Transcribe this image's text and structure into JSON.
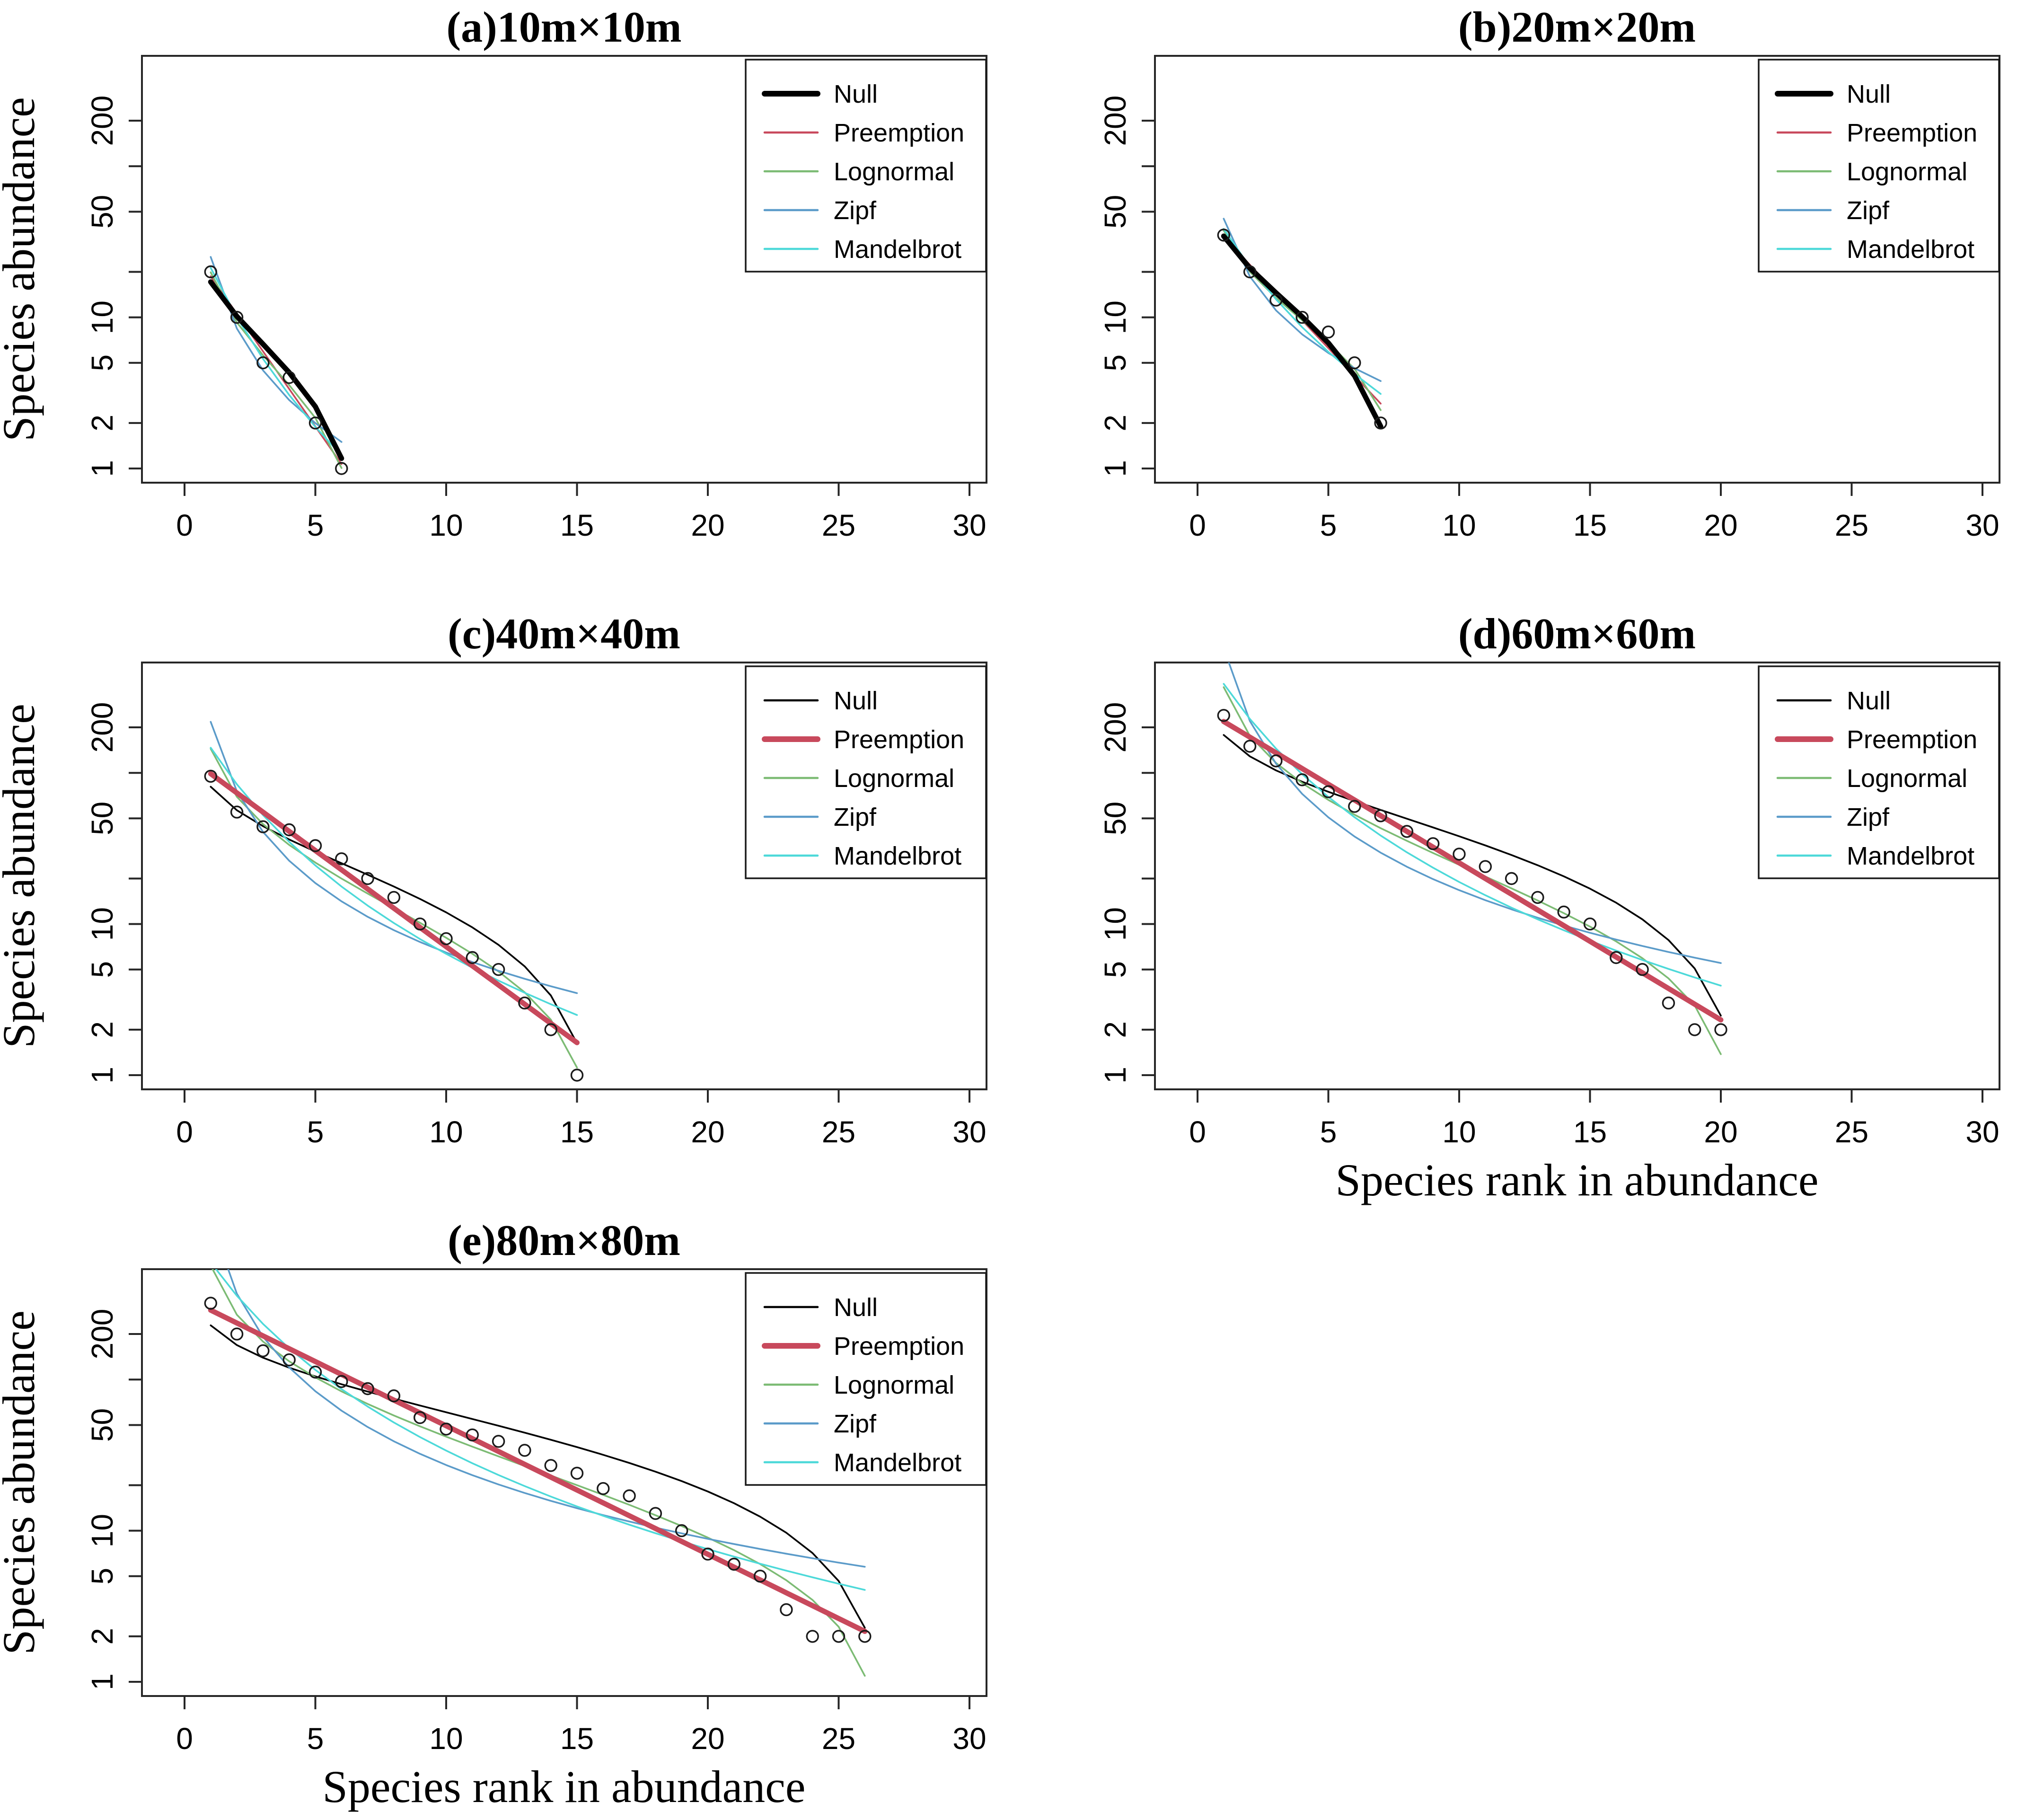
{
  "chart_data": {
    "type": "line",
    "description_title": "Rank abundance curves with fitted models",
    "xlabel": "Species rank in abundance",
    "ylabel": "Species abundance",
    "x_ticks": [
      0,
      5,
      10,
      15,
      20,
      25,
      30
    ],
    "y_ticks_labeled": [
      200,
      50,
      10,
      5,
      2,
      1
    ],
    "y_ticks_unlabeled": [
      100,
      20
    ],
    "xlim": [
      0,
      31
    ],
    "ylim": [
      0.8,
      530
    ],
    "log_y": true,
    "grid": false,
    "legend_position": "top-right",
    "models": [
      "Null",
      "Preemption",
      "Lognormal",
      "Zipf",
      "Mandelbrot"
    ],
    "model_colors": {
      "Null": "#000000",
      "Preemption": "#C8495C",
      "Lognormal": "#7CBB74",
      "Zipf": "#5B9BC9",
      "Mandelbrot": "#4DD9D9"
    },
    "point_color": "#1a1a1a",
    "axis_color": "#262626",
    "subplots": [
      {
        "id": "a",
        "title": "(a)10m×10m",
        "bold_model": "Null",
        "show_ylabel": true,
        "show_xlabel": false,
        "ranks": [
          1,
          2,
          3,
          4,
          5,
          6
        ],
        "observed": [
          20,
          10,
          5,
          4,
          2,
          1
        ]
      },
      {
        "id": "b",
        "title": "(b)20m×20m",
        "bold_model": "Null",
        "show_ylabel": false,
        "show_xlabel": false,
        "ranks": [
          1,
          2,
          3,
          4,
          5,
          6,
          7
        ],
        "observed": [
          35,
          20,
          13,
          10,
          8,
          5,
          2
        ]
      },
      {
        "id": "c",
        "title": "(c)40m×40m",
        "bold_model": "Preemption",
        "show_ylabel": true,
        "show_xlabel": false,
        "ranks": [
          1,
          2,
          3,
          4,
          5,
          6,
          7,
          8,
          9,
          10,
          11,
          12,
          13,
          14,
          15
        ],
        "observed": [
          95,
          55,
          44,
          42,
          33,
          27,
          20,
          15,
          10,
          8,
          6,
          5,
          3,
          2,
          1
        ]
      },
      {
        "id": "d",
        "title": "(d)60m×60m",
        "bold_model": "Preemption",
        "show_ylabel": false,
        "show_xlabel": true,
        "ranks": [
          1,
          2,
          3,
          4,
          5,
          6,
          7,
          8,
          9,
          10,
          11,
          12,
          13,
          14,
          15,
          16,
          17,
          18,
          19,
          20
        ],
        "observed": [
          240,
          150,
          120,
          90,
          75,
          60,
          52,
          41,
          34,
          29,
          24,
          20,
          15,
          12,
          10,
          6,
          5,
          3,
          2,
          2
        ]
      },
      {
        "id": "e",
        "title": "(e)80m×80m",
        "bold_model": "Preemption",
        "show_ylabel": true,
        "show_xlabel": true,
        "ranks": [
          1,
          2,
          3,
          4,
          5,
          6,
          7,
          8,
          9,
          10,
          11,
          12,
          13,
          14,
          15,
          16,
          17,
          18,
          19,
          20,
          21,
          22,
          23,
          24,
          25,
          26
        ],
        "observed": [
          320,
          200,
          155,
          135,
          112,
          97,
          87,
          78,
          56,
          47,
          43,
          39,
          34,
          27,
          24,
          19,
          17,
          13,
          10,
          7,
          6,
          5,
          3,
          2,
          2,
          2
        ]
      }
    ]
  }
}
